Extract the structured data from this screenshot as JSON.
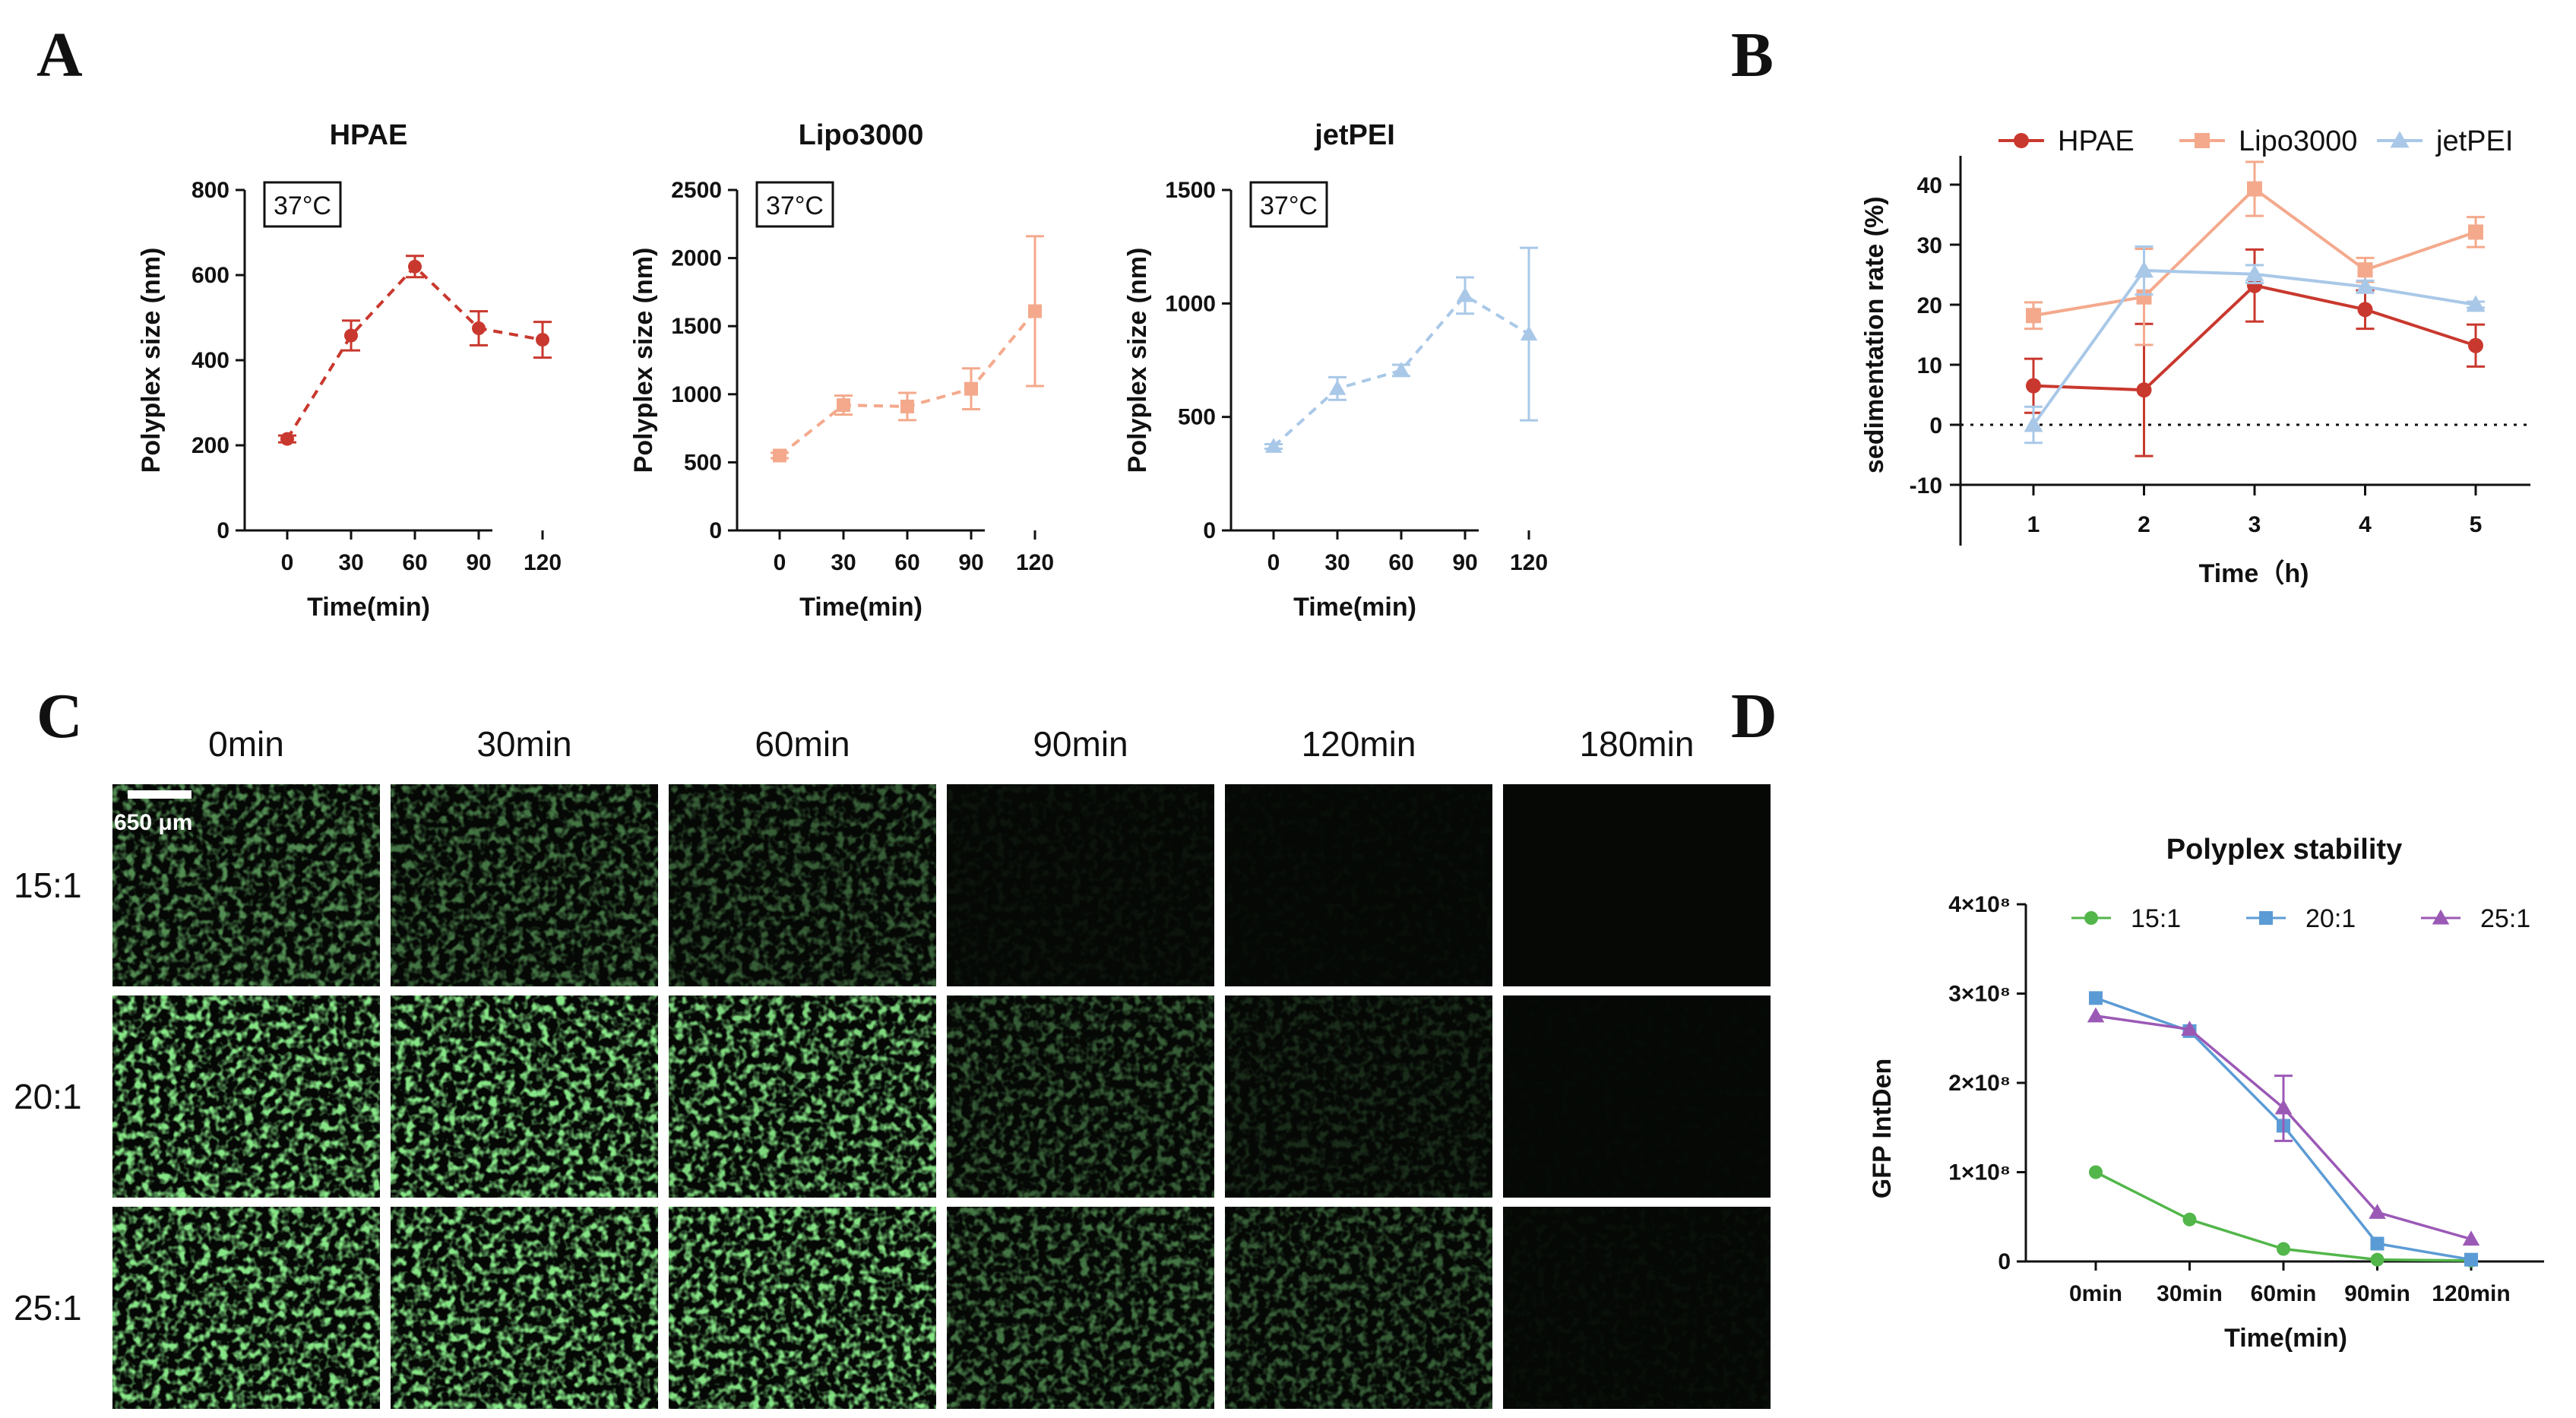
{
  "panels": {
    "A": "A",
    "B": "B",
    "C": "C",
    "D": "D"
  },
  "panel_a_common": {
    "xlabel": "Time(min)",
    "ylabel": "Polyplex size (nm)",
    "temp_badge": "37°C",
    "x_ticks": [
      "0",
      "30",
      "60",
      "90",
      "120"
    ]
  },
  "chart_data": [
    {
      "type": "line",
      "panel": "A",
      "title": "HPAE",
      "xlabel": "Time(min)",
      "ylabel": "Polyplex size (nm)",
      "x": [
        0,
        30,
        60,
        90,
        120
      ],
      "ylim": [
        0,
        800
      ],
      "y_ticks": [
        0,
        200,
        400,
        600,
        800
      ],
      "marker": "circle",
      "line_style": "dashed",
      "color": "#c9382e",
      "values": [
        215,
        458,
        620,
        475,
        448
      ],
      "errors": [
        8,
        35,
        25,
        40,
        42
      ]
    },
    {
      "type": "line",
      "panel": "A",
      "title": "Lipo3000",
      "xlabel": "Time(min)",
      "ylabel": "Polyplex size (nm)",
      "x": [
        0,
        30,
        60,
        90,
        120
      ],
      "ylim": [
        0,
        2500
      ],
      "y_ticks": [
        0,
        500,
        1000,
        1500,
        2000,
        2500
      ],
      "marker": "square",
      "line_style": "dashed",
      "color": "#f4a98c",
      "values": [
        550,
        920,
        910,
        1040,
        1610
      ],
      "errors": [
        20,
        70,
        100,
        150,
        550
      ]
    },
    {
      "type": "line",
      "panel": "A",
      "title": "jetPEI",
      "xlabel": "Time(min)",
      "ylabel": "Polyplex size (nm)",
      "x": [
        0,
        30,
        60,
        90,
        120
      ],
      "ylim": [
        0,
        1500
      ],
      "y_ticks": [
        0,
        500,
        1000,
        1500
      ],
      "marker": "triangle",
      "line_style": "dashed",
      "color": "#a9c8e8",
      "values": [
        370,
        625,
        705,
        1035,
        865
      ],
      "errors": [
        10,
        50,
        25,
        80,
        380
      ]
    },
    {
      "type": "line",
      "panel": "B",
      "xlabel": "Time（h)",
      "ylabel": "sedimentation rate (%)",
      "x": [
        1,
        2,
        3,
        4,
        5
      ],
      "ylim": [
        -10,
        45
      ],
      "y_ticks": [
        -10,
        0,
        10,
        20,
        30,
        40
      ],
      "reference_line": 0,
      "legend_position": "top",
      "series": [
        {
          "name": "HPAE",
          "marker": "circle",
          "color": "#c9382e",
          "values": [
            6.5,
            5.8,
            23.2,
            19.2,
            13.2
          ],
          "errors": [
            4.5,
            11,
            6,
            3.2,
            3.5
          ]
        },
        {
          "name": "Lipo3000",
          "marker": "square",
          "color": "#f4a98c",
          "values": [
            18.2,
            21.3,
            39.3,
            25.8,
            32.1
          ],
          "errors": [
            2.2,
            8,
            4.5,
            2,
            2.5
          ]
        },
        {
          "name": "jetPEI",
          "marker": "triangle",
          "color": "#a9c8e8",
          "values": [
            0,
            25.7,
            25.1,
            23,
            20
          ],
          "errors": [
            3,
            4,
            1.5,
            1,
            0.5
          ]
        }
      ]
    },
    {
      "type": "line",
      "panel": "D",
      "title": "Polyplex stability",
      "xlabel": "Time(min)",
      "ylabel": "GFP IntDen",
      "categories": [
        "0min",
        "30min",
        "60min",
        "90min",
        "120min"
      ],
      "ylim": [
        0,
        400000000
      ],
      "y_tick_labels": [
        "0",
        "1×10⁸",
        "2×10⁸",
        "3×10⁸",
        "4×10⁸"
      ],
      "legend_position": "top",
      "series": [
        {
          "name": "15:1",
          "marker": "circle",
          "color": "#52b64a",
          "values": [
            100000000,
            47000000,
            14000000,
            2000000,
            1000000
          ]
        },
        {
          "name": "20:1",
          "marker": "square",
          "color": "#5b9bd5",
          "values": [
            295000000,
            258000000,
            152000000,
            20000000,
            2000000
          ]
        },
        {
          "name": "25:1",
          "marker": "triangle",
          "color": "#9b59b6",
          "values": [
            275000000,
            260000000,
            172000000,
            55000000,
            25000000
          ]
        }
      ]
    }
  ],
  "micrographs": {
    "columns": [
      "0min",
      "30min",
      "60min",
      "90min",
      "120min",
      "180min"
    ],
    "rows": [
      "15:1",
      "20:1",
      "25:1"
    ],
    "scale_bar": "650 μm",
    "brightness": [
      [
        0.55,
        0.45,
        0.35,
        0.05,
        0.02,
        0.0
      ],
      [
        1.0,
        1.0,
        0.85,
        0.35,
        0.15,
        0.01
      ],
      [
        1.0,
        1.0,
        0.9,
        0.45,
        0.35,
        0.03
      ]
    ],
    "color": "#3cc43c"
  }
}
